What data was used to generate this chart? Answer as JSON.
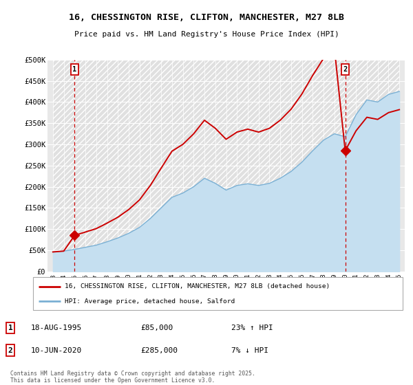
{
  "title_line1": "16, CHESSINGTON RISE, CLIFTON, MANCHESTER, M27 8LB",
  "title_line2": "Price paid vs. HM Land Registry's House Price Index (HPI)",
  "ylim": [
    0,
    500000
  ],
  "yticks": [
    0,
    50000,
    100000,
    150000,
    200000,
    250000,
    300000,
    350000,
    400000,
    450000,
    500000
  ],
  "ytick_labels": [
    "£0",
    "£50K",
    "£100K",
    "£150K",
    "£200K",
    "£250K",
    "£300K",
    "£350K",
    "£400K",
    "£450K",
    "£500K"
  ],
  "sale1_x": 2,
  "sale2_x": 27,
  "sale1_price": 85000,
  "sale2_price": 285000,
  "legend_line1": "16, CHESSINGTON RISE, CLIFTON, MANCHESTER, M27 8LB (detached house)",
  "legend_line2": "HPI: Average price, detached house, Salford",
  "footer": "Contains HM Land Registry data © Crown copyright and database right 2025.\nThis data is licensed under the Open Government Licence v3.0.",
  "red_color": "#cc0000",
  "blue_fill_color": "#c5dff0",
  "blue_line_color": "#7ab0d4",
  "years": [
    "1993",
    "1994",
    "1995",
    "1996",
    "1997",
    "1998",
    "1999",
    "2000",
    "2001",
    "2002",
    "2003",
    "2004",
    "2005",
    "2006",
    "2007",
    "2008",
    "2009",
    "2010",
    "2011",
    "2012",
    "2013",
    "2014",
    "2015",
    "2016",
    "2017",
    "2018",
    "2019",
    "2020",
    "2021",
    "2022",
    "2023",
    "2024",
    "2025"
  ],
  "hpi_values": [
    46000,
    48000,
    52000,
    57000,
    62000,
    70000,
    79000,
    90000,
    104000,
    125000,
    150000,
    175000,
    185000,
    200000,
    220000,
    208000,
    192000,
    203000,
    207000,
    203000,
    208000,
    220000,
    236000,
    258000,
    285000,
    310000,
    325000,
    318000,
    370000,
    405000,
    400000,
    418000,
    425000
  ],
  "red_values": [
    46000,
    48000,
    85000,
    93000,
    101000,
    114000,
    128000,
    146000,
    169000,
    203000,
    244000,
    284000,
    300000,
    325000,
    357000,
    338000,
    312000,
    329000,
    336000,
    329000,
    338000,
    357000,
    383000,
    419000,
    463000,
    503000,
    527000,
    285000,
    332000,
    364000,
    359000,
    375000,
    382000
  ]
}
